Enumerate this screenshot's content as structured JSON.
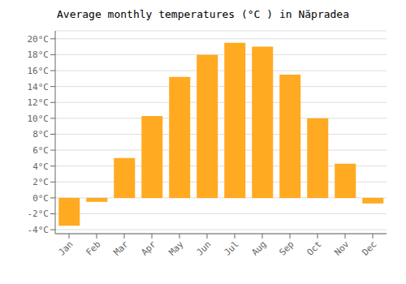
{
  "chart_data": {
    "type": "bar",
    "title": "Average monthly temperatures (°C ) in Năpradea",
    "categories": [
      "Jan",
      "Feb",
      "Mar",
      "Apr",
      "May",
      "Jun",
      "Jul",
      "Aug",
      "Sep",
      "Oct",
      "Nov",
      "Dec"
    ],
    "values": [
      -3.5,
      -0.5,
      5.0,
      10.3,
      15.2,
      18.0,
      19.5,
      19.0,
      15.5,
      10.0,
      4.3,
      -0.7
    ],
    "color": "#FFAA20",
    "ylim": [
      -4.5,
      21
    ],
    "yticks": [
      {
        "value": -4,
        "label": "-4°C"
      },
      {
        "value": -2,
        "label": "-2°C"
      },
      {
        "value": 0,
        "label": "0°C"
      },
      {
        "value": 2,
        "label": "2°C"
      },
      {
        "value": 4,
        "label": "4°C"
      },
      {
        "value": 6,
        "label": "6°C"
      },
      {
        "value": 8,
        "label": "8°C"
      },
      {
        "value": 10,
        "label": "10°C"
      },
      {
        "value": 12,
        "label": "12°C"
      },
      {
        "value": 14,
        "label": "14°C"
      },
      {
        "value": 16,
        "label": "16°C"
      },
      {
        "value": 18,
        "label": "18°C"
      },
      {
        "value": 20,
        "label": "20°C"
      }
    ],
    "grid": true
  }
}
